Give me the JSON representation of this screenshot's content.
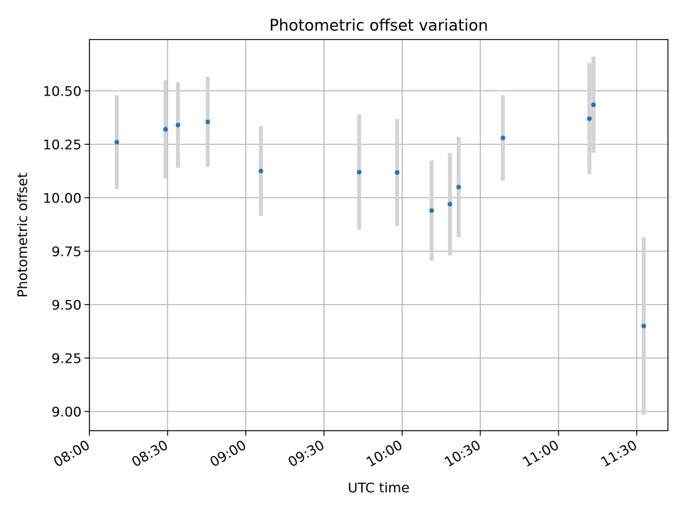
{
  "chart_data": {
    "type": "scatter",
    "title": "Photometric offset variation",
    "xlabel": "UTC time",
    "ylabel": "Photometric offset",
    "x_unit": "time HH:MM (UTC)",
    "xlim": [
      "08:00",
      "11:42"
    ],
    "ylim": [
      8.91,
      10.74
    ],
    "x_ticks": [
      "08:00",
      "08:30",
      "09:00",
      "09:30",
      "10:00",
      "10:30",
      "11:00",
      "11:30"
    ],
    "y_ticks": [
      "9.00",
      "9.25",
      "9.50",
      "9.75",
      "10.00",
      "10.25",
      "10.50"
    ],
    "grid": true,
    "point_color": "#1f77b4",
    "errorbar_color": "#d3d3d3",
    "series": [
      {
        "points": [
          {
            "x": "08:10:30",
            "y": 10.26,
            "err": 0.22
          },
          {
            "x": "08:29:12",
            "y": 10.32,
            "err": 0.23
          },
          {
            "x": "08:33:58",
            "y": 10.34,
            "err": 0.2
          },
          {
            "x": "08:45:24",
            "y": 10.355,
            "err": 0.21
          },
          {
            "x": "09:05:48",
            "y": 10.125,
            "err": 0.21
          },
          {
            "x": "09:43:30",
            "y": 10.12,
            "err": 0.27
          },
          {
            "x": "09:58:04",
            "y": 10.118,
            "err": 0.25
          },
          {
            "x": "10:11:18",
            "y": 9.94,
            "err": 0.235
          },
          {
            "x": "10:18:20",
            "y": 9.97,
            "err": 0.24
          },
          {
            "x": "10:21:40",
            "y": 10.05,
            "err": 0.235
          },
          {
            "x": "10:38:40",
            "y": 10.28,
            "err": 0.2
          },
          {
            "x": "11:11:50",
            "y": 10.37,
            "err": 0.26
          },
          {
            "x": "11:13:25",
            "y": 10.435,
            "err": 0.225
          },
          {
            "x": "11:32:42",
            "y": 9.4,
            "err": 0.415
          }
        ]
      }
    ]
  }
}
